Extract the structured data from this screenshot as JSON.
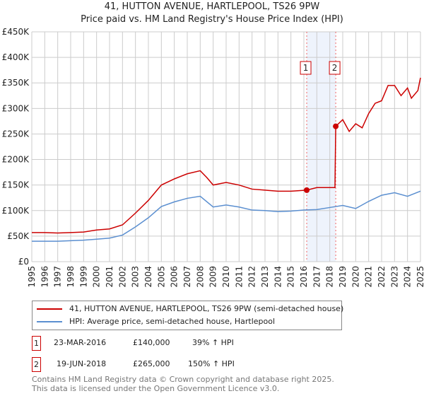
{
  "chart_data": {
    "type": "line",
    "title": "41, HUTTON AVENUE, HARTLEPOOL, TS26 9PW",
    "subtitle": "Price paid vs. HM Land Registry's House Price Index (HPI)",
    "xlim": [
      1995,
      2025
    ],
    "ylim": [
      0,
      450000
    ],
    "x_ticks": [
      "1995",
      "1996",
      "1997",
      "1998",
      "1999",
      "2000",
      "2001",
      "2002",
      "2003",
      "2004",
      "2005",
      "2006",
      "2007",
      "2008",
      "2009",
      "2010",
      "2011",
      "2012",
      "2013",
      "2014",
      "2015",
      "2016",
      "2017",
      "2018",
      "2019",
      "2020",
      "2021",
      "2022",
      "2023",
      "2024",
      "2025"
    ],
    "y_ticks": [
      {
        "v": 0,
        "l": "£0"
      },
      {
        "v": 50000,
        "l": "£50K"
      },
      {
        "v": 100000,
        "l": "£100K"
      },
      {
        "v": 150000,
        "l": "£150K"
      },
      {
        "v": 200000,
        "l": "£200K"
      },
      {
        "v": 250000,
        "l": "£250K"
      },
      {
        "v": 300000,
        "l": "£300K"
      },
      {
        "v": 350000,
        "l": "£350K"
      },
      {
        "v": 400000,
        "l": "£400K"
      },
      {
        "v": 450000,
        "l": "£450K"
      }
    ],
    "grid": true,
    "series": [
      {
        "name": "41, HUTTON AVENUE, HARTLEPOOL, TS26 9PW (semi-detached house)",
        "color": "#cc0000",
        "x": [
          1995,
          1996,
          1997,
          1998,
          1999,
          2000,
          2001,
          2002,
          2003,
          2004,
          2005,
          2006,
          2007,
          2008,
          2008.5,
          2009,
          2010,
          2011,
          2012,
          2013,
          2014,
          2015,
          2016.22,
          2017,
          2018.4,
          2018.46,
          2019,
          2019.5,
          2020,
          2020.5,
          2021,
          2021.5,
          2022,
          2022.5,
          2023,
          2023.5,
          2024,
          2024.3,
          2024.8,
          2025
        ],
        "y": [
          57000,
          57000,
          56000,
          57000,
          58000,
          62000,
          64000,
          72000,
          95000,
          120000,
          150000,
          162000,
          172000,
          178000,
          165000,
          150000,
          155000,
          150000,
          142000,
          140000,
          138000,
          138000,
          140000,
          145000,
          145000,
          265000,
          278000,
          255000,
          270000,
          262000,
          290000,
          310000,
          315000,
          345000,
          345000,
          325000,
          340000,
          320000,
          335000,
          360000
        ]
      },
      {
        "name": "HPI: Average price, semi-detached house, Hartlepool",
        "color": "#5b8fd0",
        "x": [
          1995,
          1996,
          1997,
          1998,
          1999,
          2000,
          2001,
          2002,
          2003,
          2004,
          2005,
          2006,
          2007,
          2008,
          2009,
          2010,
          2011,
          2012,
          2013,
          2014,
          2015,
          2016,
          2017,
          2018,
          2019,
          2020,
          2021,
          2022,
          2023,
          2024,
          2025
        ],
        "y": [
          40000,
          40000,
          40000,
          41000,
          42000,
          44000,
          46000,
          52000,
          68000,
          86000,
          108000,
          117000,
          124000,
          128000,
          107000,
          111000,
          107000,
          101000,
          100000,
          98000,
          99000,
          101000,
          102000,
          106000,
          110000,
          104000,
          118000,
          130000,
          135000,
          128000,
          138000
        ]
      }
    ],
    "transactions": [
      {
        "num": "1",
        "date": "23-MAR-2016",
        "price": "£140,000",
        "hpi": "39% ↑ HPI",
        "x": 2016.22,
        "y": 140000
      },
      {
        "num": "2",
        "date": "19-JUN-2018",
        "price": "£265,000",
        "hpi": "150% ↑ HPI",
        "x": 2018.46,
        "y": 265000
      }
    ]
  },
  "footer": {
    "line1": "Contains HM Land Registry data © Crown copyright and database right 2025.",
    "line2": "This data is licensed under the Open Government Licence v3.0."
  }
}
